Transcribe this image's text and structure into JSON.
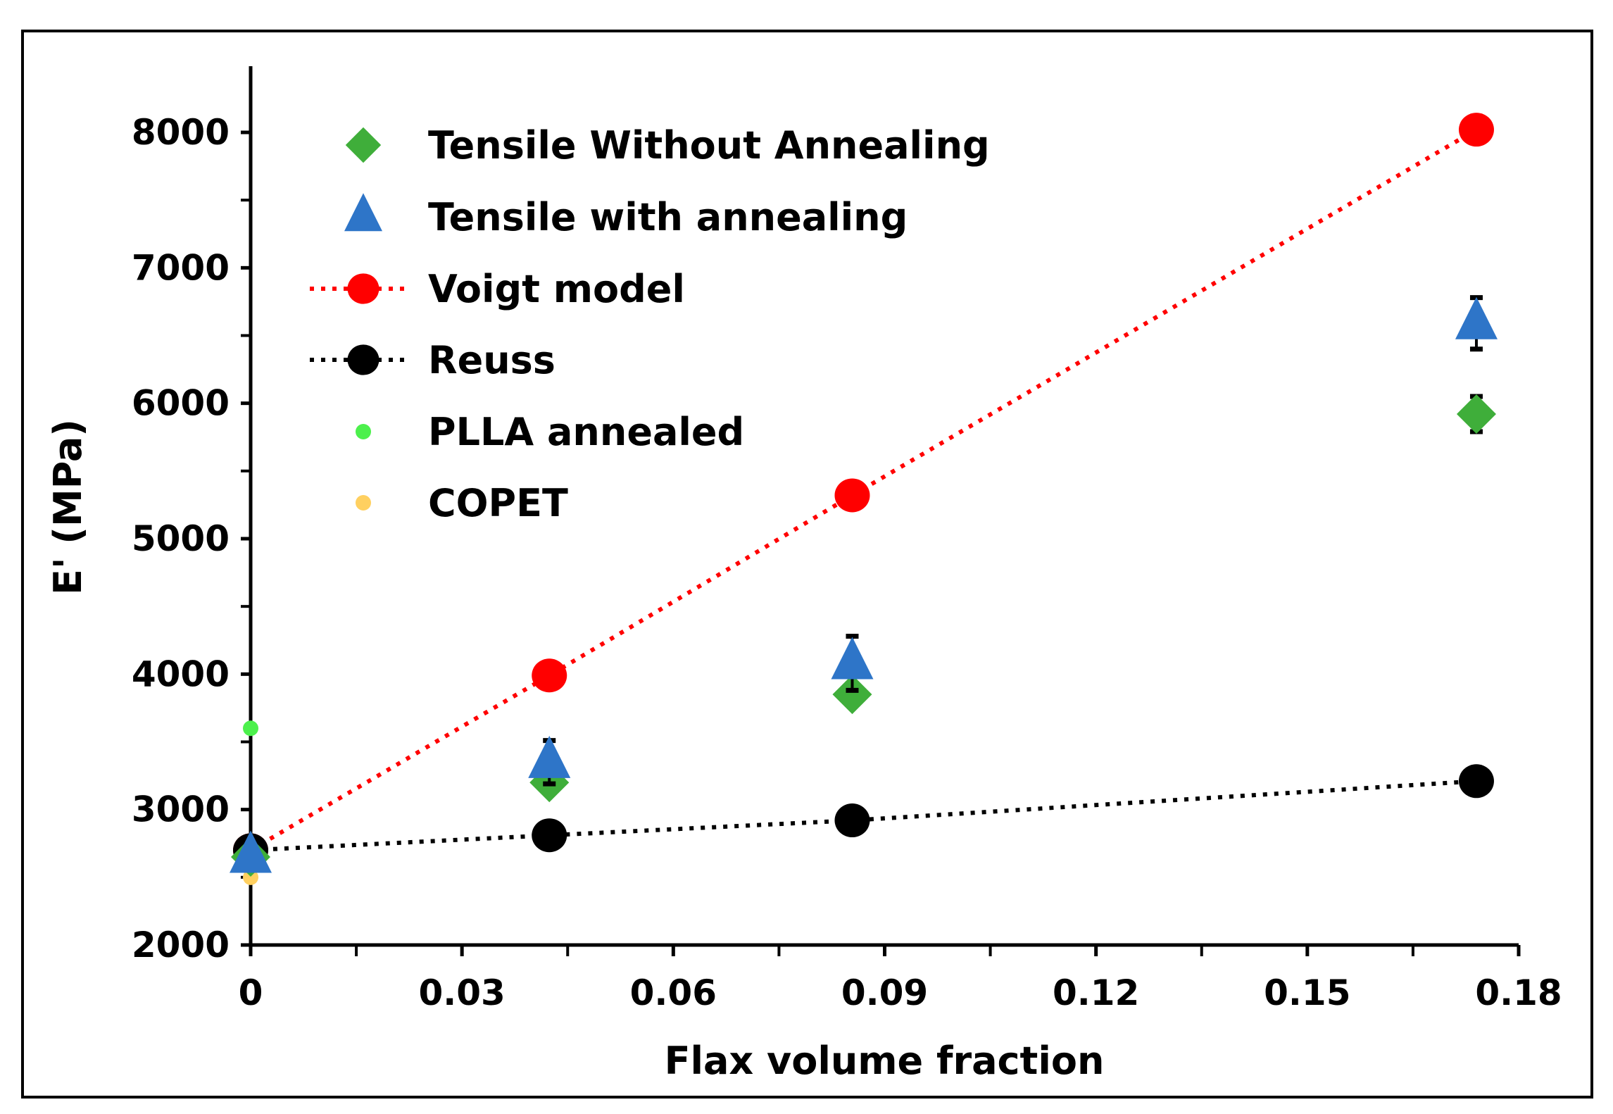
{
  "chart_data": {
    "type": "scatter",
    "title": "",
    "xlabel": "Flax volume fraction",
    "ylabel": "E' (MPa)",
    "xlim": [
      0,
      0.18
    ],
    "ylim": [
      2000,
      8000
    ],
    "xticks": [
      "0",
      "0.03",
      "0.06",
      "0.09",
      "0.12",
      "0.15",
      "0.18"
    ],
    "yticks": [
      "2000",
      "3000",
      "4000",
      "5000",
      "6000",
      "7000",
      "8000"
    ],
    "xtick_values": [
      0,
      0.03,
      0.06,
      0.09,
      0.12,
      0.15,
      0.18
    ],
    "ytick_values": [
      2000,
      3000,
      4000,
      5000,
      6000,
      7000,
      8000
    ],
    "grid": false,
    "legend_position": "top-left",
    "series": [
      {
        "name": "Tensile Without Annealing",
        "marker": "diamond",
        "color": "#3fae3a",
        "line": "none",
        "x": [
          0,
          0.0424,
          0.0854,
          0.174
        ],
        "y": [
          2650,
          3200,
          3850,
          5920
        ],
        "err": [
          40,
          60,
          60,
          130
        ]
      },
      {
        "name": "Tensile with annealing",
        "marker": "triangle",
        "color": "#2e75c8",
        "line": "none",
        "x": [
          0,
          0.0424,
          0.0854,
          0.174
        ],
        "y": [
          2650,
          3350,
          4080,
          6590
        ],
        "err": [
          40,
          160,
          200,
          190
        ]
      },
      {
        "name": "Voigt model",
        "marker": "circle",
        "color": "#ff0000",
        "line": "dotted",
        "x": [
          0,
          0.0424,
          0.0854,
          0.174
        ],
        "y": [
          2700,
          3990,
          5320,
          8020
        ]
      },
      {
        "name": "Reuss",
        "marker": "circle",
        "color": "#000000",
        "line": "dotted",
        "x": [
          0,
          0.0424,
          0.0854,
          0.174
        ],
        "y": [
          2700,
          2810,
          2920,
          3210
        ]
      },
      {
        "name": "PLLA annealed",
        "marker": "small-circle",
        "color": "#4cf04c",
        "line": "none",
        "x": [
          0
        ],
        "y": [
          3600
        ]
      },
      {
        "name": "COPET",
        "marker": "small-circle",
        "color": "#ffd060",
        "line": "none",
        "x": [
          0
        ],
        "y": [
          2500
        ]
      }
    ]
  }
}
